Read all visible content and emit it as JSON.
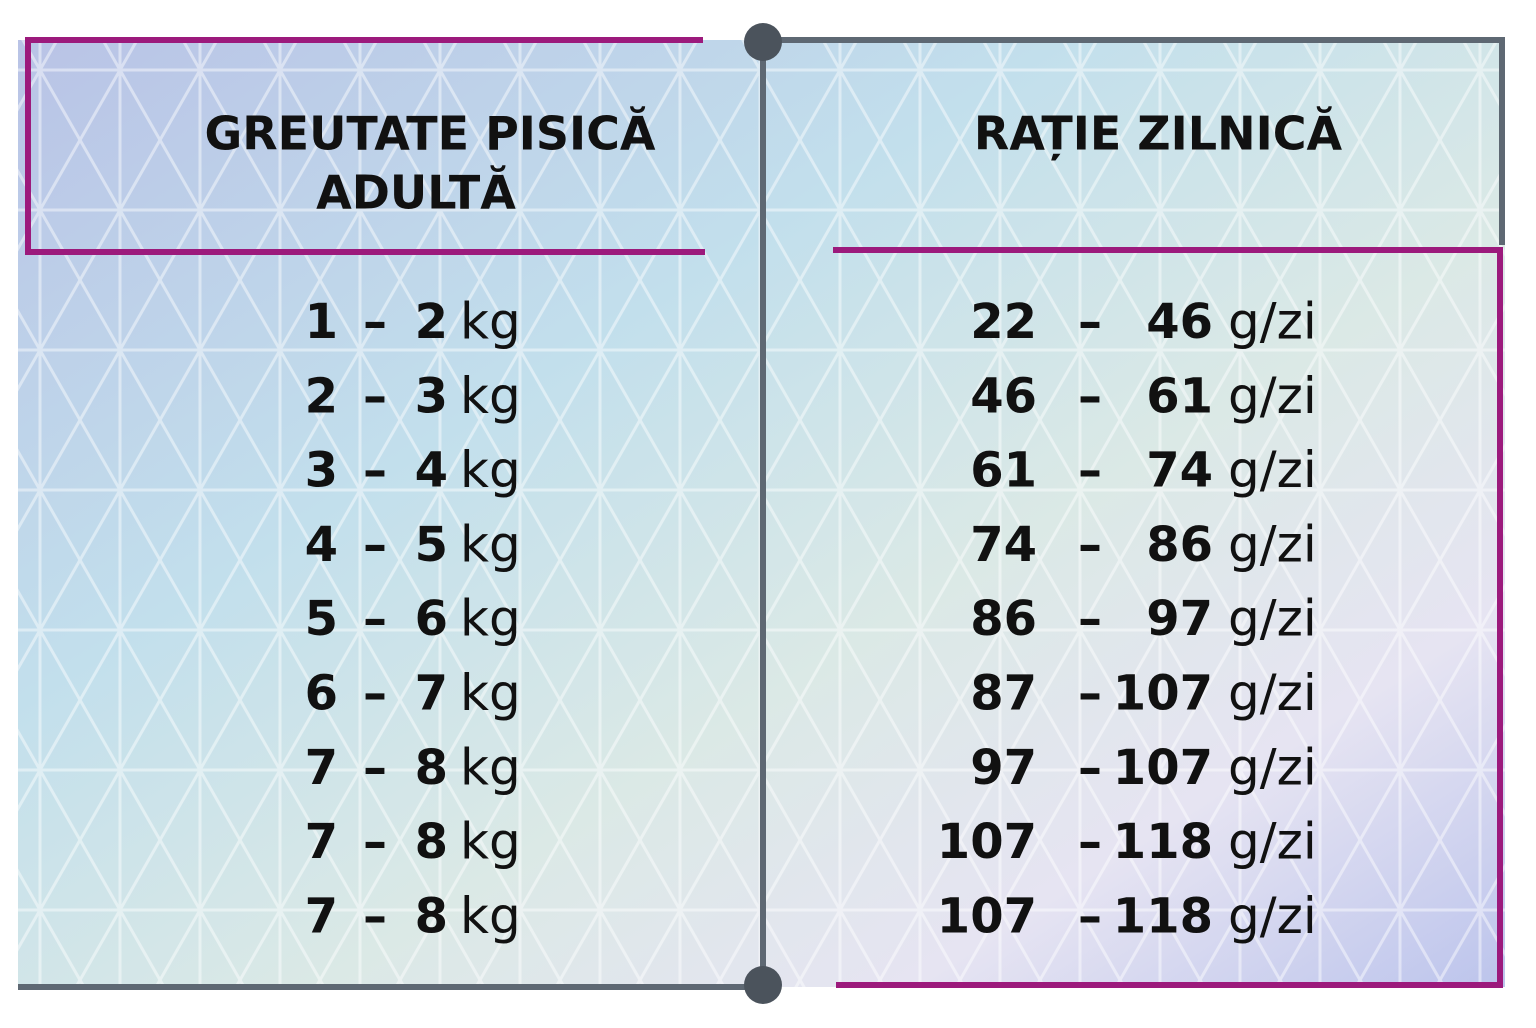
{
  "table": {
    "headers": [
      [
        "GREUTATE PISICĂ",
        "ADULTĂ"
      ],
      [
        "RAȚIE ZILNICĂ"
      ]
    ],
    "separator": "–",
    "units": [
      "kg",
      "g/zi"
    ],
    "rows": [
      {
        "weight": [
          1,
          2
        ],
        "ration": [
          22,
          46
        ]
      },
      {
        "weight": [
          2,
          3
        ],
        "ration": [
          46,
          61
        ]
      },
      {
        "weight": [
          3,
          4
        ],
        "ration": [
          61,
          74
        ]
      },
      {
        "weight": [
          4,
          5
        ],
        "ration": [
          74,
          86
        ]
      },
      {
        "weight": [
          5,
          6
        ],
        "ration": [
          86,
          97
        ]
      },
      {
        "weight": [
          6,
          7
        ],
        "ration": [
          87,
          107
        ]
      },
      {
        "weight": [
          7,
          8
        ],
        "ration": [
          97,
          107
        ]
      },
      {
        "weight": [
          7,
          8
        ],
        "ration": [
          107,
          118
        ]
      },
      {
        "weight": [
          7,
          8
        ],
        "ration": [
          107,
          118
        ]
      }
    ]
  }
}
